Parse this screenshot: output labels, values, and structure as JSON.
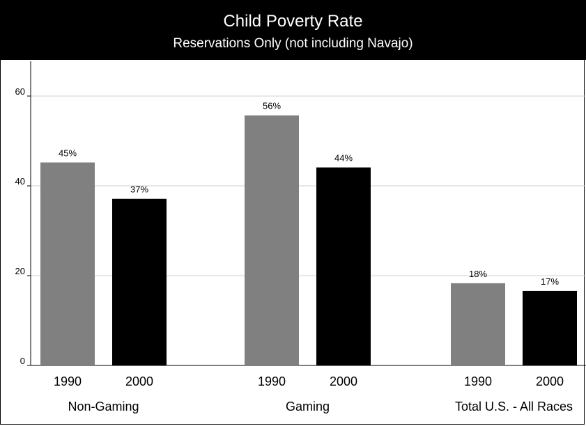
{
  "chart_data": {
    "type": "bar",
    "title": "Child Poverty Rate",
    "subtitle": "Reservations Only (not including Navajo)",
    "xlabel": "",
    "ylabel": "",
    "ylim": [
      0,
      60
    ],
    "yticks": [
      "0",
      "20",
      "40",
      "60"
    ],
    "grid": true,
    "groups": [
      {
        "name": "Non-Gaming",
        "bars": [
          {
            "year": "1990",
            "value": 45.2,
            "label": "45%",
            "color": "#808080"
          },
          {
            "year": "2000",
            "value": 37.1,
            "label": "37%",
            "color": "#000000"
          }
        ]
      },
      {
        "name": "Gaming",
        "bars": [
          {
            "year": "1990",
            "value": 55.7,
            "label": "56%",
            "color": "#808080"
          },
          {
            "year": "2000",
            "value": 44.1,
            "label": "44%",
            "color": "#000000"
          }
        ]
      },
      {
        "name": "Total U.S. - All Races",
        "bars": [
          {
            "year": "1990",
            "value": 18.3,
            "label": "18%",
            "color": "#808080"
          },
          {
            "year": "2000",
            "value": 16.6,
            "label": "17%",
            "color": "#000000"
          }
        ]
      }
    ]
  }
}
